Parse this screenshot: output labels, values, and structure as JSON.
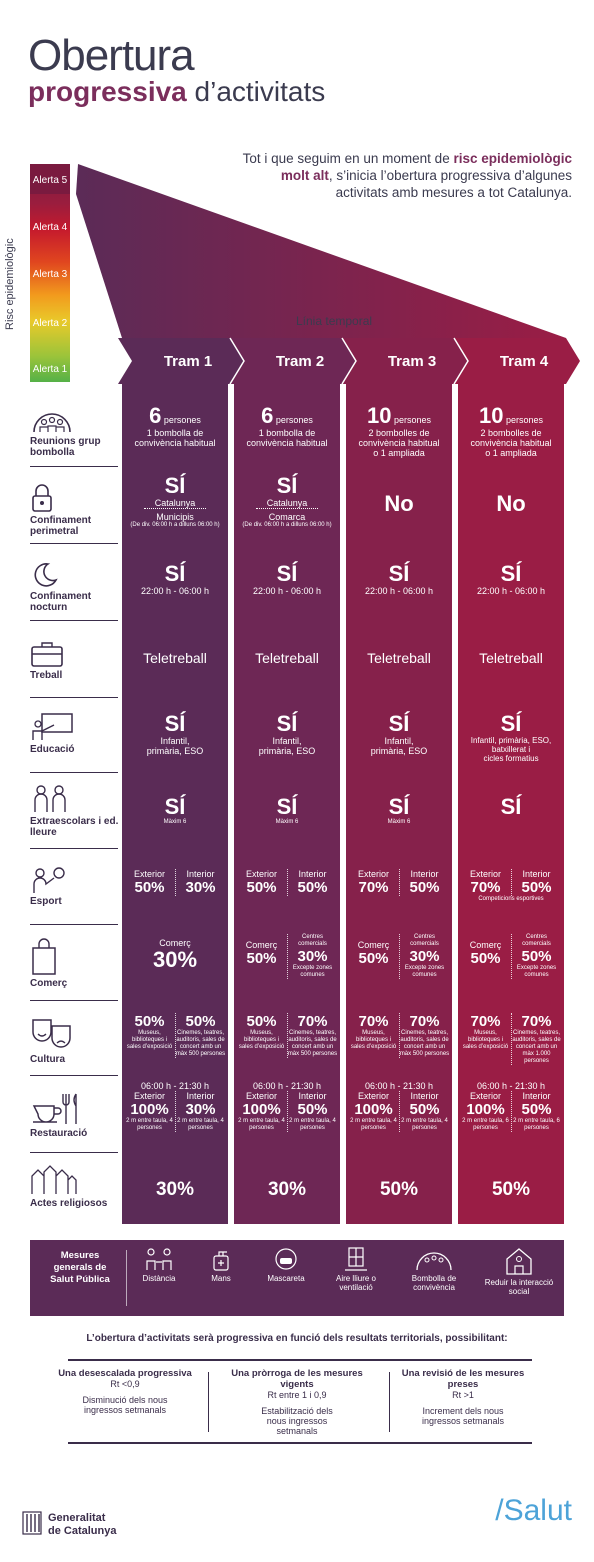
{
  "title": {
    "line1": "Obertura",
    "line2_bold": "progressiva",
    "line2_rest": " d’activitats"
  },
  "intro": {
    "pre": "Tot i que seguim en un moment de ",
    "bold": "risc epidemiològic molt alt",
    "post": ", s’inicia l’obertura progressiva d’algunes activitats amb mesures a tot Catalunya."
  },
  "risk": {
    "axis": "Risc epidemiològic",
    "levels": [
      "Alerta 5",
      "Alerta 4",
      "Alerta 3",
      "Alerta 2",
      "Alerta 1"
    ]
  },
  "timeline_label": "Línia temporal",
  "trams": [
    "Tram 1",
    "Tram 2",
    "Tram 3",
    "Tram 4"
  ],
  "colors": {
    "tram1": "#5b2b57",
    "tram2": "#6e2755",
    "tram3": "#86214b",
    "tram4": "#9a1d45",
    "dark": "#3a2d4a",
    "accent": "#7b2e5c",
    "salut": "#4da3d8"
  },
  "rows": [
    {
      "name": "Reunions grup bombolla",
      "icon": "group-bubble-icon"
    },
    {
      "name": "Confinament perimetral",
      "icon": "padlock-icon"
    },
    {
      "name": "Confinament nocturn",
      "icon": "moon-icon"
    },
    {
      "name": "Treball",
      "icon": "briefcase-icon"
    },
    {
      "name": "Educació",
      "icon": "teacher-board-icon"
    },
    {
      "name": "Extraescolars i ed. lleure",
      "icon": "children-icon"
    },
    {
      "name": "Esport",
      "icon": "ball-player-icon"
    },
    {
      "name": "Comerç",
      "icon": "shopping-bag-icon"
    },
    {
      "name": "Cultura",
      "icon": "theater-masks-icon"
    },
    {
      "name": "Restauració",
      "icon": "cup-cutlery-icon"
    },
    {
      "name": "Actes religiosos",
      "icon": "church-icon"
    }
  ],
  "t1": {
    "reunions": {
      "num": "6",
      "unit": " persones",
      "d1": "1 bombolla de",
      "d2": "convivència habitual"
    },
    "perimetral": {
      "main": "SÍ",
      "a": "Catalunya",
      "b": "Municipis",
      "c": "(De div. 06:00 h a dilluns 06:00 h)"
    },
    "nocturn": {
      "main": "SÍ",
      "sub": "22:00 h - 06:00 h"
    },
    "treball": "Teletreball",
    "educacio": {
      "main": "SÍ",
      "s1": "Infantil,",
      "s2": "primària, ESO"
    },
    "extra": {
      "main": "SÍ",
      "sub": "Màxim 6"
    },
    "esport": {
      "l1": "Exterior",
      "v1": "50%",
      "l2": "Interior",
      "v2": "30%"
    },
    "comerc": {
      "l": "Comerç",
      "v": "30%"
    },
    "cultura": {
      "v1": "50%",
      "d1": "Museus, biblioteques i sales d’exposició",
      "v2": "50%",
      "d2": "Cinemes, teatres, auditoris, sales de concert amb un màx 500 persones"
    },
    "rest": {
      "hours": "06:00 h - 21:30 h",
      "l1": "Exterior",
      "v1": "100%",
      "d1": "2 m entre taula, 4 persones",
      "l2": "Interior",
      "v2": "30%",
      "d2": "2 m entre taula, 4 persones"
    },
    "religiosos": "30%"
  },
  "t2": {
    "reunions": {
      "num": "6",
      "unit": " persones",
      "d1": "1 bombolla de",
      "d2": "convivència habitual"
    },
    "perimetral": {
      "main": "SÍ",
      "a": "Catalunya",
      "b": "Comarca",
      "c": "(De div. 06:00 h a dilluns 06:00 h)"
    },
    "nocturn": {
      "main": "SÍ",
      "sub": "22:00 h - 06:00 h"
    },
    "treball": "Teletreball",
    "educacio": {
      "main": "SÍ",
      "s1": "Infantil,",
      "s2": "primària, ESO"
    },
    "extra": {
      "main": "SÍ",
      "sub": "Màxim 6"
    },
    "esport": {
      "l1": "Exterior",
      "v1": "50%",
      "l2": "Interior",
      "v2": "50%"
    },
    "comerc": {
      "l1": "Comerç",
      "v1": "50%",
      "l2": "Centres comercials",
      "v2": "30%",
      "d2": "Excepte zones comunes"
    },
    "cultura": {
      "v1": "50%",
      "d1": "Museus, biblioteques i sales d’exposició",
      "v2": "70%",
      "d2": "Cinemes, teatres, auditoris, sales de concert amb un màx 500 persones"
    },
    "rest": {
      "hours": "06:00 h - 21:30 h",
      "l1": "Exterior",
      "v1": "100%",
      "d1": "2 m entre taula, 4 persones",
      "l2": "Interior",
      "v2": "50%",
      "d2": "2 m entre taula, 4 persones"
    },
    "religiosos": "30%"
  },
  "t3": {
    "reunions": {
      "num": "10",
      "unit": " persones",
      "d1": "2 bombolles de",
      "d2": "convivència habitual",
      "d3": "o 1 ampliada"
    },
    "perimetral": {
      "main": "No"
    },
    "nocturn": {
      "main": "SÍ",
      "sub": "22:00 h - 06:00 h"
    },
    "treball": "Teletreball",
    "educacio": {
      "main": "SÍ",
      "s1": "Infantil,",
      "s2": "primària, ESO"
    },
    "extra": {
      "main": "SÍ",
      "sub": "Màxim 6"
    },
    "esport": {
      "l1": "Exterior",
      "v1": "70%",
      "l2": "Interior",
      "v2": "50%"
    },
    "comerc": {
      "l1": "Comerç",
      "v1": "50%",
      "l2": "Centres comercials",
      "v2": "30%",
      "d2": "Excepte zones comunes"
    },
    "cultura": {
      "v1": "70%",
      "d1": "Museus, biblioteques i sales d’exposició",
      "v2": "70%",
      "d2": "Cinemes, teatres, auditoris, sales de concert amb un màx 500 persones"
    },
    "rest": {
      "hours": "06:00 h - 21:30 h",
      "l1": "Exterior",
      "v1": "100%",
      "d1": "2 m entre taula, 4 persones",
      "l2": "Interior",
      "v2": "50%",
      "d2": "2 m entre taula, 4 persones"
    },
    "religiosos": "50%"
  },
  "t4": {
    "reunions": {
      "num": "10",
      "unit": " persones",
      "d1": "2 bombolles de",
      "d2": "convivència habitual",
      "d3": "o 1 ampliada"
    },
    "perimetral": {
      "main": "No"
    },
    "nocturn": {
      "main": "SÍ",
      "sub": "22:00 h - 06:00 h"
    },
    "treball": "Teletreball",
    "educacio": {
      "main": "SÍ",
      "s1": "Infantil, primària, ESO,",
      "s2": "batxillerat i",
      "s3": "cicles formatius"
    },
    "extra": {
      "main": "SÍ"
    },
    "esport": {
      "l1": "Exterior",
      "v1": "70%",
      "l2": "Interior",
      "v2": "50%",
      "note": "Competicions esportives"
    },
    "comerc": {
      "l1": "Comerç",
      "v1": "50%",
      "l2": "Centres comercials",
      "v2": "50%",
      "d2": "Excepte zones comunes"
    },
    "cultura": {
      "v1": "70%",
      "d1": "Museus, biblioteques i sales d’exposició",
      "v2": "70%",
      "d2": "Cinemes, teatres, auditoris, sales de concert amb un màx 1.000 persones"
    },
    "rest": {
      "hours": "06:00 h - 21:30 h",
      "l1": "Exterior",
      "v1": "100%",
      "d1": "2 m entre taula, 6 persones",
      "l2": "Interior",
      "v2": "50%",
      "d2": "2 m entre taula, 6 persones"
    },
    "religiosos": "50%"
  },
  "mesures": {
    "title": "Mesures generals de Salut Pública",
    "items": [
      {
        "label": "Distància",
        "icon": "distance-icon"
      },
      {
        "label": "Mans",
        "icon": "hand-wash-icon"
      },
      {
        "label": "Mascareta",
        "icon": "mask-icon"
      },
      {
        "label": "Aire lliure o ventilació",
        "icon": "ventilation-icon"
      },
      {
        "label": "Bombolla de convivència",
        "icon": "bubble-icon"
      },
      {
        "label": "Reduir la interacció social",
        "icon": "house-person-icon"
      }
    ]
  },
  "conditions": {
    "title": "L’obertura d’activitats serà progressiva en funció dels resultats territorials, possibilitant:",
    "items": [
      {
        "title": "Una desescalada progressiva",
        "rt": "Rt <0,9",
        "desc": "Disminució dels nous ingressos setmanals"
      },
      {
        "title": "Una pròrroga de les mesures vigents",
        "rt": "Rt entre 1 i 0,9",
        "desc": "Estabilització dels nous ingressos setmanals"
      },
      {
        "title": "Una revisió de les mesures preses",
        "rt": "Rt >1",
        "desc": "Increment dels nous ingressos setmanals"
      }
    ]
  },
  "footer": {
    "org1": "Generalitat",
    "org2": "de Catalunya",
    "brand": "/Salut"
  }
}
